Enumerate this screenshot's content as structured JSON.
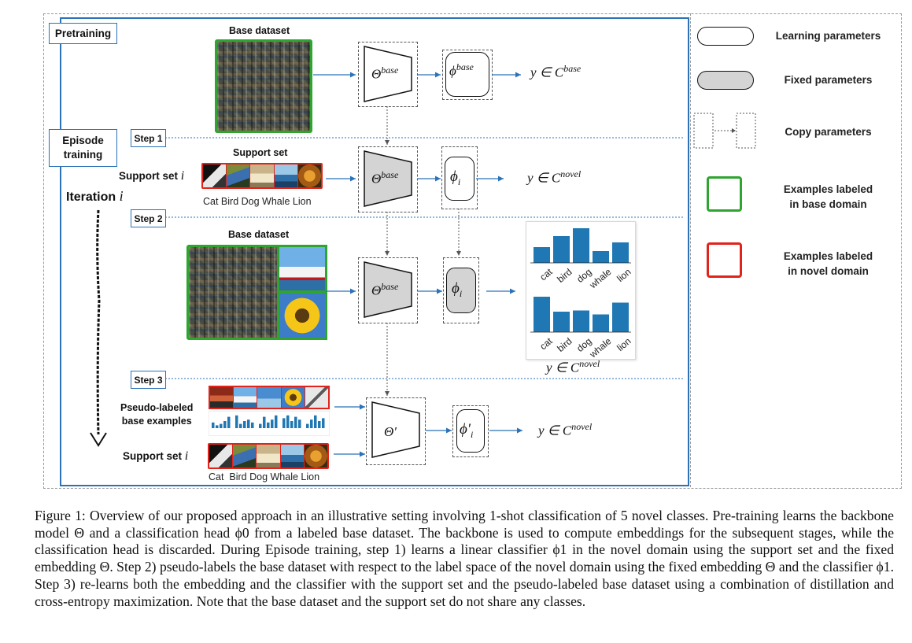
{
  "labels": {
    "pretraining": "Pretraining",
    "episode_training_line1": "Episode",
    "episode_training_line2": "training",
    "iteration": "Iteration",
    "iteration_var": "i",
    "step1": "Step 1",
    "step2": "Step 2",
    "step3": "Step 3",
    "base_dataset_top": "Base dataset",
    "base_dataset_mid": "Base dataset",
    "support_set_title": "Support set",
    "support_set_i": "Support set",
    "support_set_i2": "Support set",
    "var_i": "i",
    "support_classes": "Cat Bird Dog Whale Lion",
    "support_classes_2": "Cat  Bird Dog Whale Lion",
    "pseudo_line1": "Pseudo-labeled",
    "pseudo_line2": "base examples"
  },
  "math": {
    "theta": "Θ",
    "base_sup": "base",
    "phi": "ϕ",
    "sub_i": "i",
    "theta_prime": "Θ′",
    "phi_prime": "ϕ′",
    "y_in_C": "y ∈ C",
    "novel_sup": "novel"
  },
  "legend": {
    "learning": "Learning parameters",
    "fixed": "Fixed parameters",
    "copy": "Copy parameters",
    "base_examples_line1": "Examples labeled",
    "base_examples_line2": "in base domain",
    "novel_examples_line1": "Examples labeled",
    "novel_examples_line2": "in novel domain"
  },
  "chart_data": [
    {
      "type": "bar",
      "categories": [
        "cat",
        "bird",
        "dog",
        "whale",
        "lion"
      ],
      "values": [
        0.4,
        0.68,
        0.88,
        0.3,
        0.52
      ],
      "ylim": [
        0,
        1
      ],
      "grid": false,
      "color": "#1f77b4"
    },
    {
      "type": "bar",
      "categories": [
        "cat",
        "bird",
        "dog",
        "whale",
        "lion"
      ],
      "values": [
        0.9,
        0.52,
        0.55,
        0.45,
        0.75
      ],
      "ylim": [
        0,
        1
      ],
      "grid": false,
      "color": "#1f77b4"
    }
  ],
  "caption": {
    "text": "Figure 1: Overview of our proposed approach in an illustrative setting involving 1-shot classification of 5 novel classes. Pre-training learns the backbone model Θ and a classification head ϕ0 from a labeled base dataset. The backbone is used to compute embeddings for the subsequent stages, while the classification head is discarded. During Episode training, step 1) learns a linear classifier ϕ1 in the novel domain using the support set and the fixed embedding Θ. Step 2) pseudo-labels the base dataset with respect to the label space of the novel domain using the fixed embedding Θ and the classifier ϕ1. Step 3) re-learns both the embedding and the classifier with the support set and the pseudo-labeled base dataset using a combination of distillation and cross-entropy maximization. Note that the base dataset and the support set do not share any classes."
  },
  "colors": {
    "panel_border": "#2b72b8",
    "arrow": "#2b72b8",
    "base_green": "#2fa52f",
    "novel_red": "#e0241c",
    "bar_blue": "#1f77b4",
    "fixed_gray": "#d4d4d4"
  }
}
